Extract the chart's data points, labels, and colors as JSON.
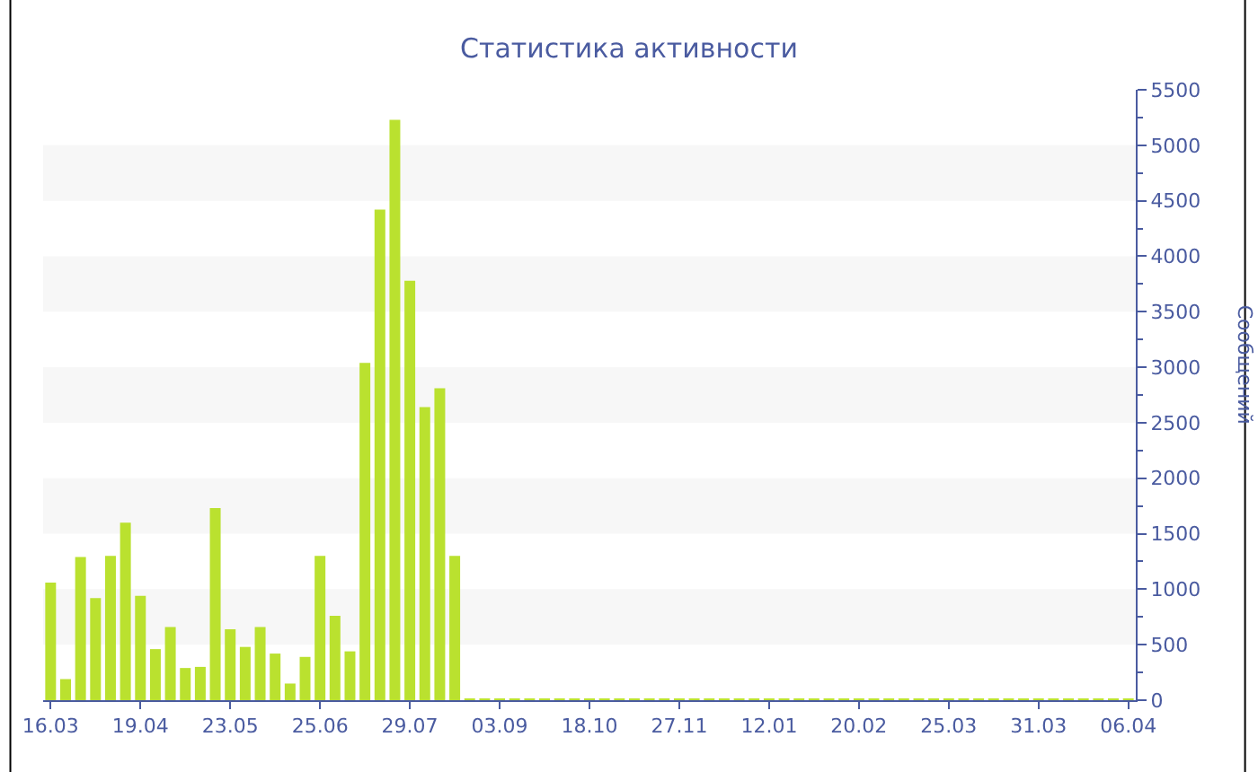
{
  "chart_data": {
    "type": "bar",
    "title": "Статистика активности",
    "ylabel": "Сообщений",
    "categories": [
      "16.03",
      null,
      null,
      null,
      null,
      null,
      "19.04",
      null,
      null,
      null,
      null,
      null,
      "23.05",
      null,
      null,
      null,
      null,
      null,
      "25.06",
      null,
      null,
      null,
      null,
      null,
      "29.07",
      null,
      null,
      null,
      null,
      null,
      "03.09",
      null,
      null,
      null,
      null,
      null,
      "18.10",
      null,
      null,
      null,
      null,
      null,
      "27.11",
      null,
      null,
      null,
      null,
      null,
      "12.01",
      null,
      null,
      null,
      null,
      null,
      "20.02",
      null,
      null,
      null,
      null,
      null,
      "25.03",
      null,
      null,
      null,
      null,
      null,
      "31.03",
      null,
      null,
      null,
      null,
      null,
      "06.04"
    ],
    "values": [
      1060,
      190,
      1290,
      920,
      1300,
      1600,
      940,
      460,
      660,
      290,
      300,
      1730,
      640,
      480,
      660,
      420,
      150,
      390,
      1300,
      760,
      440,
      3040,
      4420,
      5230,
      3780,
      2640,
      2810,
      1300,
      10,
      10,
      10,
      10,
      10,
      10,
      10,
      10,
      10,
      10,
      10,
      10,
      10,
      10,
      10,
      10,
      10,
      10,
      10,
      10,
      10,
      10,
      10,
      10,
      10,
      10,
      10,
      10,
      10,
      10,
      10,
      10,
      10,
      10,
      10,
      10,
      10,
      10,
      10,
      10,
      10,
      10,
      10,
      10,
      10
    ],
    "color": "#bae12f",
    "ylim": [
      0,
      5500
    ],
    "yticks": [
      0,
      500,
      1000,
      1500,
      2000,
      2500,
      3000,
      3500,
      4000,
      4500,
      5000,
      5500
    ],
    "bands": [
      {
        "axis": "y",
        "from": 500,
        "to": 1000,
        "color": "#f7f7f7"
      },
      {
        "axis": "y",
        "from": 1500,
        "to": 2000,
        "color": "#f7f7f7"
      },
      {
        "axis": "y",
        "from": 2500,
        "to": 3000,
        "color": "#f7f7f7"
      },
      {
        "axis": "y",
        "from": 3500,
        "to": 4000,
        "color": "#f7f7f7"
      },
      {
        "axis": "y",
        "from": 4500,
        "to": 5000,
        "color": "#f7f7f7"
      }
    ]
  }
}
